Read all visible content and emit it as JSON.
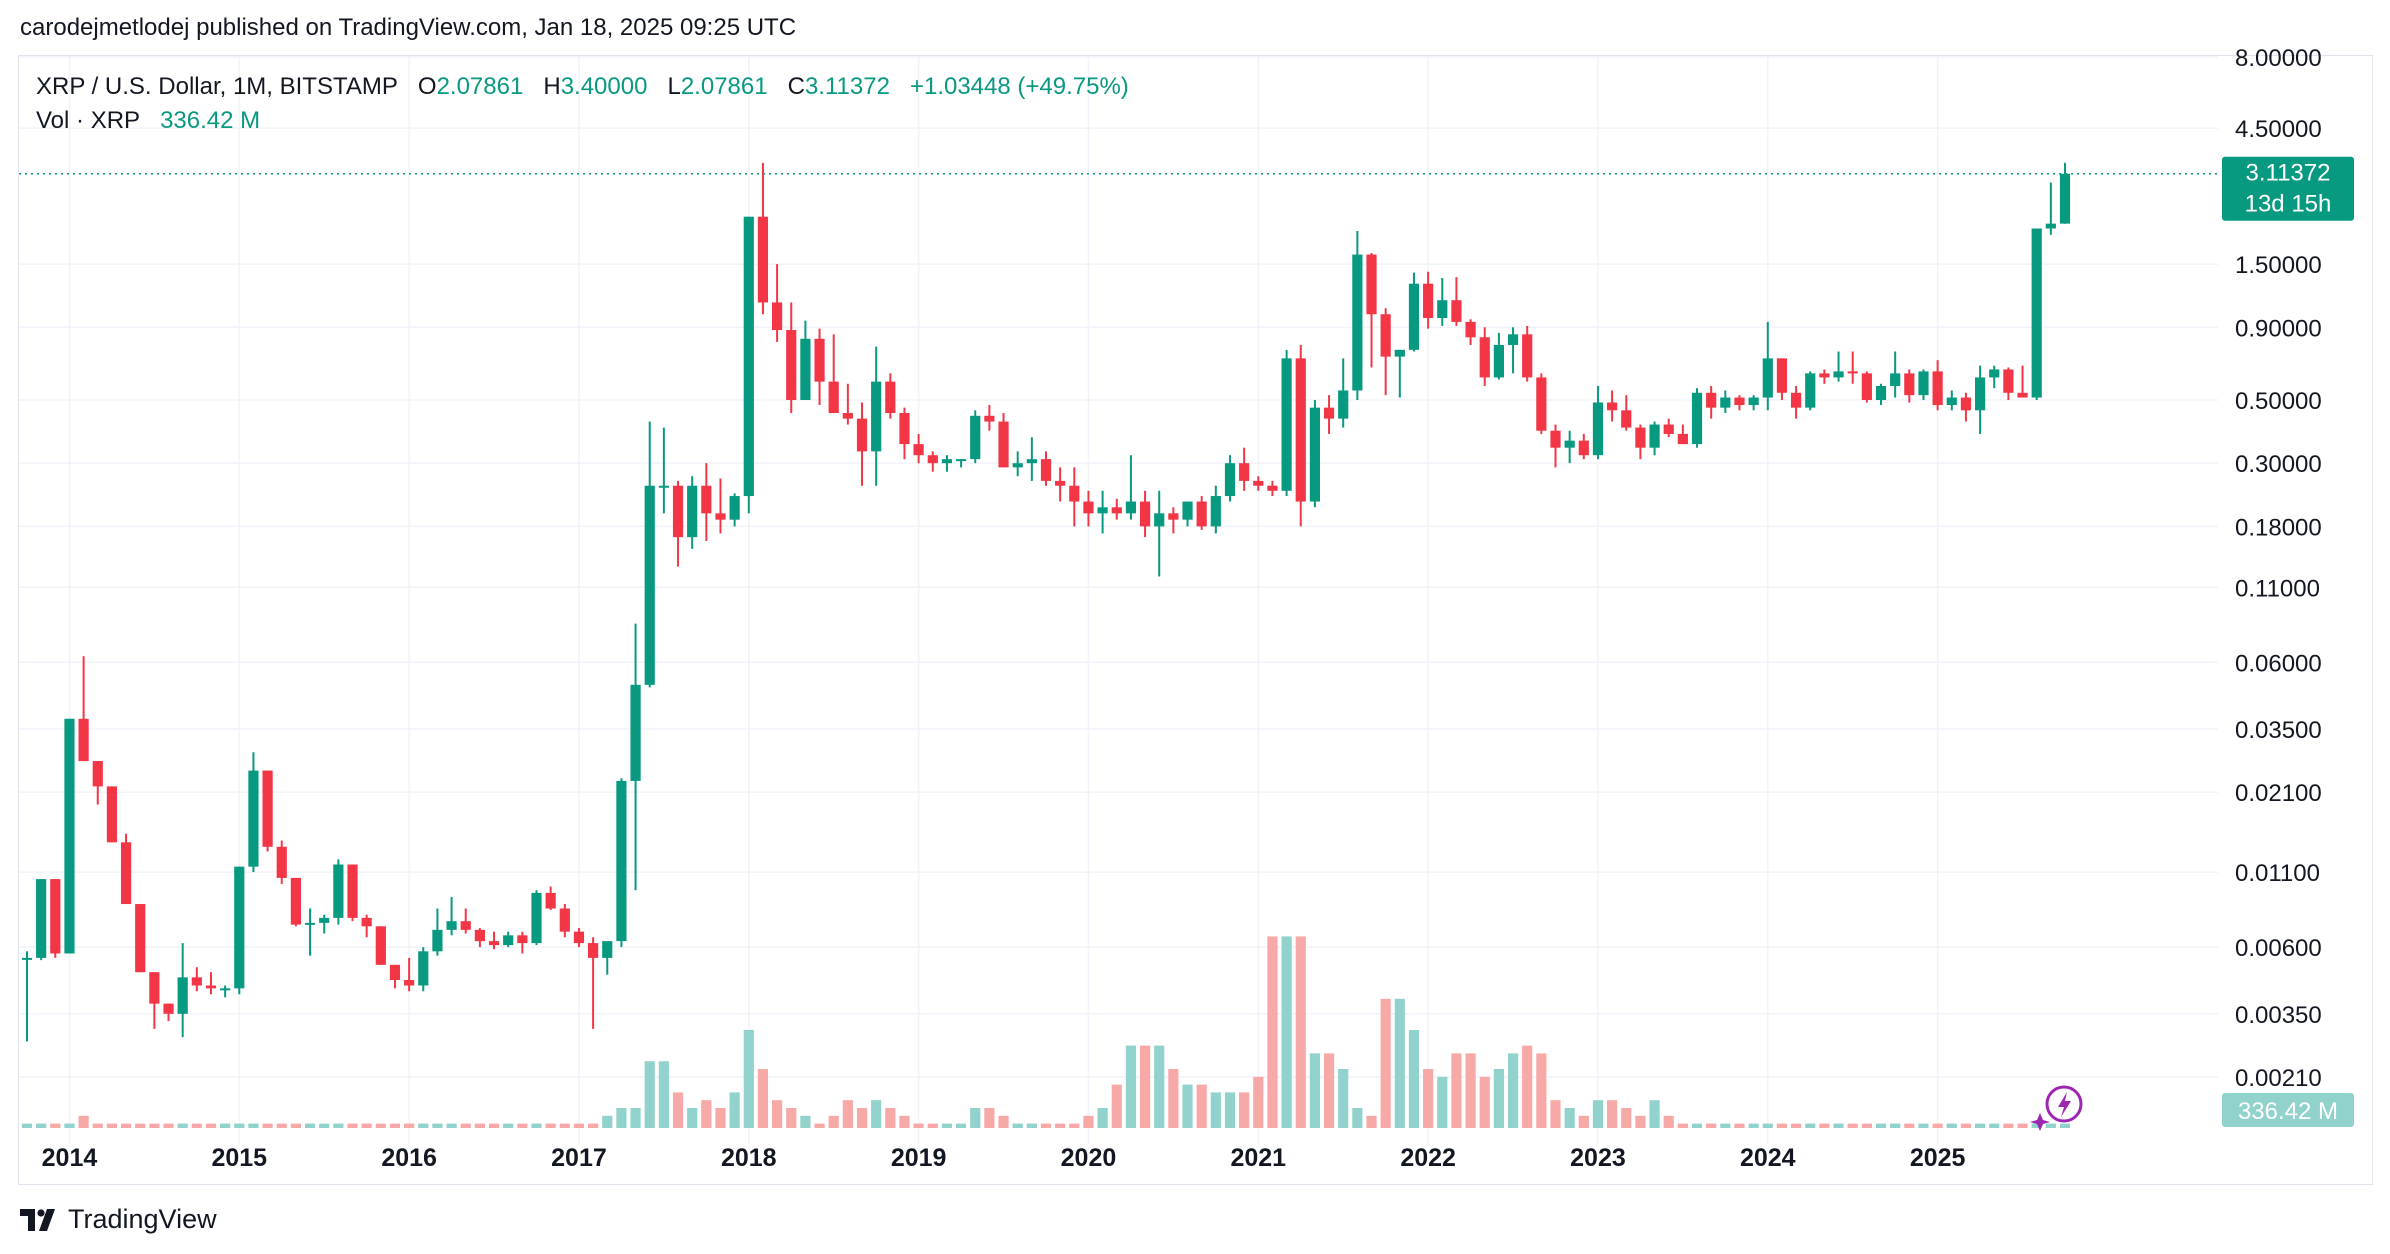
{
  "header": {
    "published": "carodejmetlodej published on TradingView.com, Jan 18, 2025 09:25 UTC"
  },
  "legend": {
    "symbol": "XRP / U.S. Dollar, 1M, BITSTAMP",
    "o_label": "O",
    "o_value": "2.07861",
    "h_label": "H",
    "h_value": "3.40000",
    "l_label": "L",
    "l_value": "2.07861",
    "c_label": "C",
    "c_value": "3.11372",
    "change": "+1.03448 (+49.75%)",
    "vol_label": "Vol · XRP",
    "vol_value": "336.42 M"
  },
  "footer": {
    "brand": "TradingView"
  },
  "colors": {
    "up": "#089981",
    "down": "#f23645",
    "up_vol": "#92d2cc",
    "down_vol": "#f7a9a7",
    "grid": "#f0f3fa",
    "axis_text": "#131722"
  },
  "chart_data": {
    "type": "candlestick",
    "scale": "log",
    "price_ticks": [
      "8.00000",
      "4.50000",
      "1.50000",
      "0.90000",
      "0.50000",
      "0.30000",
      "0.18000",
      "0.11000",
      "0.06000",
      "0.03500",
      "0.02100",
      "0.01100",
      "0.00600",
      "0.00350",
      "0.00210"
    ],
    "year_labels": [
      "2014",
      "2015",
      "2016",
      "2017",
      "2018",
      "2019",
      "2020",
      "2021",
      "2022",
      "2023",
      "2024",
      "2025"
    ],
    "last_price_label": "3.11372",
    "countdown_label": "13d 15h",
    "volume_label": "336.42 M",
    "ohlc": [
      [
        0.0055,
        0.0058,
        0.0028,
        0.0055
      ],
      [
        0.0055,
        0.0104,
        0.0054,
        0.0104
      ],
      [
        0.0104,
        0.0104,
        0.0055,
        0.0057
      ],
      [
        0.0057,
        0.038,
        0.0057,
        0.038
      ],
      [
        0.038,
        0.063,
        0.027,
        0.027
      ],
      [
        0.027,
        0.027,
        0.019,
        0.022
      ],
      [
        0.022,
        0.022,
        0.014,
        0.014
      ],
      [
        0.014,
        0.015,
        0.0085,
        0.0085
      ],
      [
        0.0085,
        0.0085,
        0.0049,
        0.0049
      ],
      [
        0.0049,
        0.0049,
        0.0031,
        0.0038
      ],
      [
        0.0038,
        0.0038,
        0.0033,
        0.0035
      ],
      [
        0.0035,
        0.0062,
        0.0029,
        0.0047
      ],
      [
        0.0047,
        0.0051,
        0.0042,
        0.0044
      ],
      [
        0.0044,
        0.0049,
        0.0041,
        0.0043
      ],
      [
        0.0043,
        0.0044,
        0.004,
        0.0043
      ],
      [
        0.0043,
        0.0115,
        0.0041,
        0.0115
      ],
      [
        0.0115,
        0.029,
        0.011,
        0.025
      ],
      [
        0.025,
        0.025,
        0.013,
        0.0135
      ],
      [
        0.0135,
        0.0142,
        0.01,
        0.0105
      ],
      [
        0.0105,
        0.0105,
        0.0071,
        0.0072
      ],
      [
        0.0072,
        0.0082,
        0.0056,
        0.0073
      ],
      [
        0.0073,
        0.0078,
        0.0067,
        0.0076
      ],
      [
        0.0076,
        0.0122,
        0.0072,
        0.0117
      ],
      [
        0.0117,
        0.0117,
        0.0074,
        0.0076
      ],
      [
        0.0076,
        0.0078,
        0.0065,
        0.0071
      ],
      [
        0.0071,
        0.0071,
        0.0052,
        0.0052
      ],
      [
        0.0052,
        0.0052,
        0.0043,
        0.0046
      ],
      [
        0.0046,
        0.0055,
        0.0042,
        0.0044
      ],
      [
        0.0044,
        0.006,
        0.0042,
        0.0058
      ],
      [
        0.0058,
        0.0082,
        0.0056,
        0.0069
      ],
      [
        0.0069,
        0.009,
        0.0066,
        0.0074
      ],
      [
        0.0074,
        0.0082,
        0.0067,
        0.0069
      ],
      [
        0.0069,
        0.007,
        0.006,
        0.0063
      ],
      [
        0.0063,
        0.0068,
        0.0059,
        0.0061
      ],
      [
        0.0061,
        0.0068,
        0.006,
        0.0066
      ],
      [
        0.0066,
        0.0068,
        0.0057,
        0.0062
      ],
      [
        0.0062,
        0.0095,
        0.0061,
        0.0093
      ],
      [
        0.0093,
        0.0098,
        0.0081,
        0.0082
      ],
      [
        0.0082,
        0.0085,
        0.0065,
        0.0068
      ],
      [
        0.0068,
        0.007,
        0.006,
        0.0062
      ],
      [
        0.0062,
        0.0065,
        0.0031,
        0.0055
      ],
      [
        0.0055,
        0.006,
        0.0048,
        0.0063
      ],
      [
        0.0063,
        0.0235,
        0.006,
        0.023
      ],
      [
        0.023,
        0.082,
        0.0095,
        0.05
      ],
      [
        0.05,
        0.42,
        0.049,
        0.25
      ],
      [
        0.25,
        0.4,
        0.2,
        0.25
      ],
      [
        0.25,
        0.26,
        0.13,
        0.165
      ],
      [
        0.165,
        0.27,
        0.15,
        0.25
      ],
      [
        0.25,
        0.3,
        0.16,
        0.2
      ],
      [
        0.2,
        0.265,
        0.17,
        0.19
      ],
      [
        0.19,
        0.235,
        0.18,
        0.23
      ],
      [
        0.23,
        2.2,
        0.2,
        2.2
      ],
      [
        2.2,
        3.4,
        1.0,
        1.1
      ],
      [
        1.1,
        1.5,
        0.8,
        0.88
      ],
      [
        0.88,
        1.1,
        0.45,
        0.5
      ],
      [
        0.5,
        0.95,
        0.5,
        0.82
      ],
      [
        0.82,
        0.89,
        0.48,
        0.58
      ],
      [
        0.58,
        0.85,
        0.45,
        0.45
      ],
      [
        0.45,
        0.57,
        0.41,
        0.43
      ],
      [
        0.43,
        0.49,
        0.25,
        0.33
      ],
      [
        0.33,
        0.77,
        0.25,
        0.58
      ],
      [
        0.58,
        0.62,
        0.43,
        0.45
      ],
      [
        0.45,
        0.47,
        0.31,
        0.35
      ],
      [
        0.35,
        0.38,
        0.3,
        0.32
      ],
      [
        0.32,
        0.33,
        0.28,
        0.3
      ],
      [
        0.3,
        0.32,
        0.28,
        0.31
      ],
      [
        0.31,
        0.31,
        0.29,
        0.31
      ],
      [
        0.31,
        0.46,
        0.3,
        0.44
      ],
      [
        0.44,
        0.48,
        0.39,
        0.42
      ],
      [
        0.42,
        0.45,
        0.29,
        0.29
      ],
      [
        0.29,
        0.33,
        0.27,
        0.3
      ],
      [
        0.3,
        0.37,
        0.26,
        0.31
      ],
      [
        0.31,
        0.33,
        0.25,
        0.26
      ],
      [
        0.26,
        0.29,
        0.22,
        0.25
      ],
      [
        0.25,
        0.29,
        0.18,
        0.22
      ],
      [
        0.22,
        0.24,
        0.18,
        0.2
      ],
      [
        0.2,
        0.24,
        0.17,
        0.21
      ],
      [
        0.21,
        0.225,
        0.19,
        0.2
      ],
      [
        0.2,
        0.32,
        0.19,
        0.22
      ],
      [
        0.22,
        0.24,
        0.165,
        0.18
      ],
      [
        0.18,
        0.24,
        0.12,
        0.2
      ],
      [
        0.2,
        0.21,
        0.17,
        0.19
      ],
      [
        0.19,
        0.21,
        0.18,
        0.22
      ],
      [
        0.22,
        0.23,
        0.175,
        0.18
      ],
      [
        0.18,
        0.25,
        0.17,
        0.23
      ],
      [
        0.23,
        0.32,
        0.22,
        0.3
      ],
      [
        0.3,
        0.34,
        0.24,
        0.26
      ],
      [
        0.26,
        0.27,
        0.24,
        0.25
      ],
      [
        0.25,
        0.26,
        0.23,
        0.24
      ],
      [
        0.24,
        0.75,
        0.23,
        0.7
      ],
      [
        0.7,
        0.78,
        0.18,
        0.22
      ],
      [
        0.22,
        0.5,
        0.21,
        0.47
      ],
      [
        0.47,
        0.52,
        0.38,
        0.43
      ],
      [
        0.43,
        0.7,
        0.4,
        0.54
      ],
      [
        0.54,
        1.96,
        0.5,
        1.62
      ],
      [
        1.62,
        1.64,
        0.65,
        1.0
      ],
      [
        1.0,
        1.05,
        0.52,
        0.71
      ],
      [
        0.71,
        0.75,
        0.51,
        0.75
      ],
      [
        0.75,
        1.4,
        0.74,
        1.28
      ],
      [
        1.28,
        1.41,
        0.89,
        0.97
      ],
      [
        0.97,
        1.34,
        0.91,
        1.12
      ],
      [
        1.12,
        1.35,
        0.91,
        0.94
      ],
      [
        0.94,
        0.96,
        0.78,
        0.83
      ],
      [
        0.83,
        0.9,
        0.56,
        0.6
      ],
      [
        0.6,
        0.86,
        0.59,
        0.78
      ],
      [
        0.78,
        0.9,
        0.62,
        0.85
      ],
      [
        0.85,
        0.91,
        0.58,
        0.6
      ],
      [
        0.6,
        0.62,
        0.38,
        0.39
      ],
      [
        0.39,
        0.41,
        0.29,
        0.34
      ],
      [
        0.34,
        0.39,
        0.3,
        0.36
      ],
      [
        0.36,
        0.38,
        0.31,
        0.32
      ],
      [
        0.32,
        0.56,
        0.31,
        0.49
      ],
      [
        0.49,
        0.54,
        0.42,
        0.46
      ],
      [
        0.46,
        0.52,
        0.39,
        0.4
      ],
      [
        0.4,
        0.41,
        0.31,
        0.34
      ],
      [
        0.34,
        0.42,
        0.32,
        0.41
      ],
      [
        0.41,
        0.43,
        0.37,
        0.38
      ],
      [
        0.38,
        0.41,
        0.35,
        0.35
      ],
      [
        0.35,
        0.55,
        0.34,
        0.53
      ],
      [
        0.53,
        0.56,
        0.43,
        0.47
      ],
      [
        0.47,
        0.54,
        0.45,
        0.51
      ],
      [
        0.51,
        0.52,
        0.46,
        0.48
      ],
      [
        0.48,
        0.52,
        0.46,
        0.51
      ],
      [
        0.51,
        0.94,
        0.46,
        0.7
      ],
      [
        0.7,
        0.7,
        0.5,
        0.53
      ],
      [
        0.53,
        0.56,
        0.43,
        0.47
      ],
      [
        0.47,
        0.63,
        0.46,
        0.62
      ],
      [
        0.62,
        0.64,
        0.57,
        0.6
      ],
      [
        0.6,
        0.74,
        0.58,
        0.63
      ],
      [
        0.63,
        0.74,
        0.57,
        0.62
      ],
      [
        0.62,
        0.63,
        0.49,
        0.5
      ],
      [
        0.5,
        0.57,
        0.48,
        0.56
      ],
      [
        0.56,
        0.74,
        0.51,
        0.62
      ],
      [
        0.62,
        0.64,
        0.49,
        0.52
      ],
      [
        0.52,
        0.64,
        0.5,
        0.63
      ],
      [
        0.63,
        0.69,
        0.46,
        0.48
      ],
      [
        0.48,
        0.54,
        0.46,
        0.51
      ],
      [
        0.51,
        0.53,
        0.42,
        0.46
      ],
      [
        0.46,
        0.66,
        0.38,
        0.6
      ],
      [
        0.6,
        0.66,
        0.55,
        0.64
      ],
      [
        0.64,
        0.65,
        0.5,
        0.53
      ],
      [
        0.53,
        0.66,
        0.52,
        0.51
      ],
      [
        0.51,
        2.0,
        0.5,
        2.0
      ],
      [
        2.0,
        2.9,
        1.9,
        2.08
      ],
      [
        2.08,
        3.4,
        2.078,
        3.114
      ]
    ],
    "volume_relative": [
      0.8,
      0.8,
      0.8,
      0.8,
      0.9,
      0.8,
      0.8,
      0.8,
      0.8,
      0.8,
      0.8,
      0.8,
      0.8,
      0.8,
      0.8,
      0.8,
      0.8,
      0.8,
      0.8,
      0.8,
      0.8,
      0.8,
      0.8,
      0.8,
      0.8,
      0.8,
      0.8,
      0.8,
      0.8,
      0.8,
      0.8,
      0.8,
      0.8,
      0.8,
      0.8,
      0.8,
      0.8,
      0.8,
      0.8,
      0.8,
      0.8,
      0.9,
      1.0,
      1.0,
      1.6,
      1.6,
      1.2,
      1.0,
      1.1,
      1.0,
      1.2,
      2.0,
      1.5,
      1.1,
      1.0,
      0.9,
      0.8,
      0.9,
      1.1,
      1.0,
      1.1,
      1.0,
      0.9,
      0.8,
      0.8,
      0.8,
      0.8,
      1.0,
      1.0,
      0.9,
      0.8,
      0.8,
      0.8,
      0.8,
      0.8,
      0.9,
      1.0,
      1.3,
      1.8,
      1.8,
      1.8,
      1.5,
      1.3,
      1.3,
      1.2,
      1.2,
      1.2,
      1.4,
      3.2,
      3.2,
      3.2,
      1.7,
      1.7,
      1.5,
      1.0,
      0.9,
      2.4,
      2.4,
      2.0,
      1.5,
      1.4,
      1.7,
      1.7,
      1.4,
      1.5,
      1.7,
      1.8,
      1.7,
      1.1,
      1.0,
      0.9,
      1.1,
      1.1,
      1.0,
      0.9,
      1.1,
      0.9,
      0.8,
      0.8,
      0.8,
      0.8,
      0.8,
      0.8,
      0.8,
      0.8,
      0.8,
      0.8,
      0.8,
      0.8,
      0.8,
      0.8,
      0.8,
      0.8,
      0.8,
      0.8,
      0.8,
      0.8,
      0.8,
      0.8,
      0.8,
      0.8,
      0.8,
      0.8,
      0.8,
      0.8
    ]
  }
}
